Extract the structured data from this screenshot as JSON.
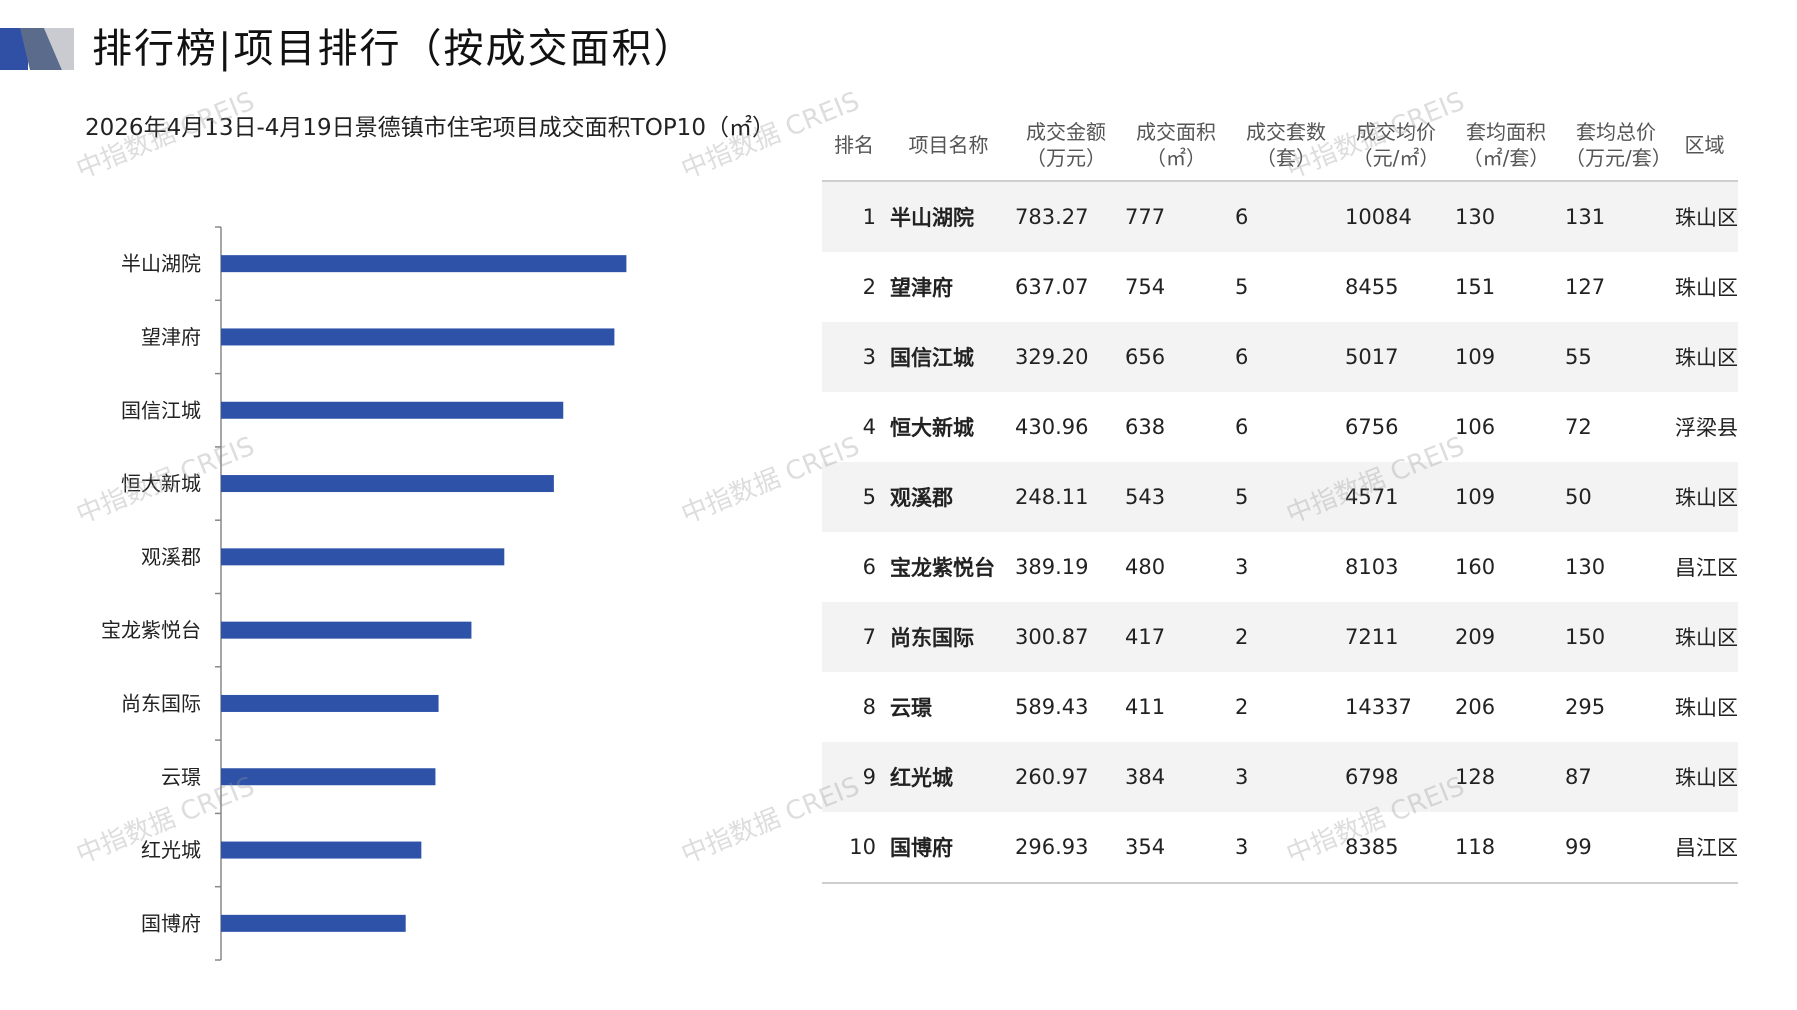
{
  "header": {
    "title": "排行榜|项目排行（按成交面积）",
    "accent_color": "#3050a6"
  },
  "chart_title": "2026年4月13日-4月19日景德镇市住宅项目成交面积TOP10（㎡）",
  "chart_data": {
    "type": "bar",
    "orientation": "horizontal",
    "categories": [
      "半山湖院",
      "望津府",
      "国信江城",
      "恒大新城",
      "观溪郡",
      "宝龙紫悦台",
      "尚东国际",
      "云璟",
      "红光城",
      "国博府"
    ],
    "values": [
      777,
      754,
      656,
      638,
      543,
      480,
      417,
      411,
      384,
      354
    ],
    "title": "2026年4月13日-4月19日景德镇市住宅项目成交面积TOP10（㎡）",
    "bar_color": "#2e52a8",
    "xlim": [
      0,
      1150
    ]
  },
  "table": {
    "columns": [
      {
        "line1": "排名",
        "line2": ""
      },
      {
        "line1": "项目名称",
        "line2": ""
      },
      {
        "line1": "成交金额",
        "line2": "（万元）"
      },
      {
        "line1": "成交面积",
        "line2": "（㎡）"
      },
      {
        "line1": "成交套数",
        "line2": "（套）"
      },
      {
        "line1": "成交均价",
        "line2": "（元/㎡）"
      },
      {
        "line1": "套均面积",
        "line2": "（㎡/套）"
      },
      {
        "line1": "套均总价",
        "line2": "（万元/套）"
      },
      {
        "line1": "区域",
        "line2": ""
      }
    ],
    "rows": [
      [
        "1",
        "半山湖院",
        "783.27",
        "777",
        "6",
        "10084",
        "130",
        "131",
        "珠山区"
      ],
      [
        "2",
        "望津府",
        "637.07",
        "754",
        "5",
        "8455",
        "151",
        "127",
        "珠山区"
      ],
      [
        "3",
        "国信江城",
        "329.20",
        "656",
        "6",
        "5017",
        "109",
        "55",
        "珠山区"
      ],
      [
        "4",
        "恒大新城",
        "430.96",
        "638",
        "6",
        "6756",
        "106",
        "72",
        "浮梁县"
      ],
      [
        "5",
        "观溪郡",
        "248.11",
        "543",
        "5",
        "4571",
        "109",
        "50",
        "珠山区"
      ],
      [
        "6",
        "宝龙紫悦台",
        "389.19",
        "480",
        "3",
        "8103",
        "160",
        "130",
        "昌江区"
      ],
      [
        "7",
        "尚东国际",
        "300.87",
        "417",
        "2",
        "7211",
        "209",
        "150",
        "珠山区"
      ],
      [
        "8",
        "云璟",
        "589.43",
        "411",
        "2",
        "14337",
        "206",
        "295",
        "珠山区"
      ],
      [
        "9",
        "红光城",
        "260.97",
        "384",
        "3",
        "6798",
        "128",
        "87",
        "珠山区"
      ],
      [
        "10",
        "国博府",
        "296.93",
        "354",
        "3",
        "8385",
        "118",
        "99",
        "昌江区"
      ]
    ]
  },
  "watermark": "中指数据 CREIS"
}
